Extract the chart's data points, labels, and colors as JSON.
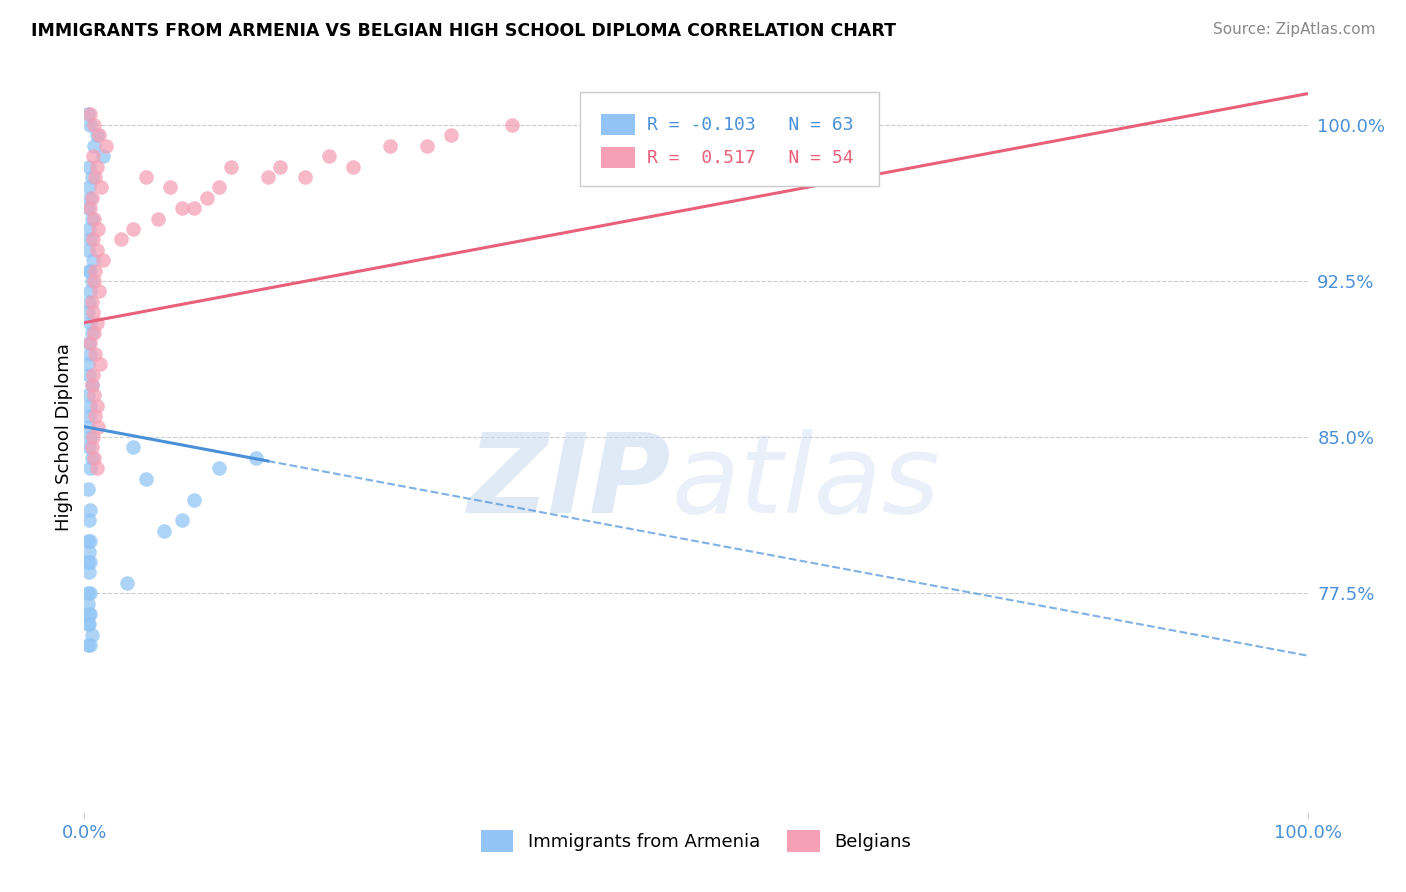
{
  "title": "IMMIGRANTS FROM ARMENIA VS BELGIAN HIGH SCHOOL DIPLOMA CORRELATION CHART",
  "source": "Source: ZipAtlas.com",
  "ylabel": "High School Diploma",
  "ytick_vals": [
    77.5,
    85.0,
    92.5,
    100.0
  ],
  "ytick_labels": [
    "77.5%",
    "85.0%",
    "92.5%",
    "100.0%"
  ],
  "legend_label_blue": "Immigrants from Armenia",
  "legend_label_pink": "Belgians",
  "blue_color": "#92c5f5",
  "pink_color": "#f5a0b5",
  "blue_line_color": "#4a90d9",
  "pink_line_color": "#e8607a",
  "blue_r": -0.103,
  "blue_n": 63,
  "pink_r": 0.517,
  "pink_n": 54,
  "blue_line_x0": 0,
  "blue_line_y0": 85.5,
  "blue_line_x1": 100,
  "blue_line_y1": 74.5,
  "blue_solid_end": 15,
  "pink_line_x0": 0,
  "pink_line_y0": 90.5,
  "pink_line_x1": 100,
  "pink_line_y1": 101.5,
  "xlim": [
    0,
    100
  ],
  "ylim": [
    67,
    103
  ],
  "blue_x": [
    0.3,
    0.5,
    1.0,
    0.8,
    1.5,
    0.4,
    0.6,
    0.4,
    0.5,
    0.3,
    0.6,
    0.4,
    0.5,
    0.3,
    0.7,
    0.5,
    0.4,
    0.6,
    0.5,
    0.4,
    0.3,
    0.5,
    0.6,
    0.4,
    0.5,
    0.3,
    0.4,
    0.6,
    0.3,
    0.5,
    0.4,
    0.3,
    0.5,
    0.4,
    0.6,
    0.5,
    0.3,
    0.5,
    0.4,
    0.3,
    0.5,
    0.4,
    0.3,
    0.5,
    0.4,
    0.3,
    0.5,
    0.3,
    0.4,
    0.5,
    0.3,
    0.4,
    0.6,
    0.5,
    0.3,
    4.0,
    5.0,
    9.0,
    6.5,
    3.5,
    11.0,
    8.0,
    14.0
  ],
  "blue_y": [
    100.5,
    100.0,
    99.5,
    99.0,
    98.5,
    98.0,
    97.5,
    97.0,
    96.5,
    96.0,
    95.5,
    95.0,
    94.5,
    94.0,
    93.5,
    93.0,
    93.0,
    92.5,
    92.0,
    91.5,
    91.0,
    90.5,
    90.0,
    89.5,
    89.0,
    88.5,
    88.0,
    87.5,
    87.0,
    86.5,
    86.0,
    85.5,
    85.0,
    84.5,
    84.0,
    83.5,
    82.5,
    81.5,
    81.0,
    80.0,
    80.0,
    79.5,
    79.0,
    79.0,
    78.5,
    77.5,
    77.5,
    77.0,
    76.5,
    76.5,
    76.0,
    76.0,
    75.5,
    75.0,
    75.0,
    84.5,
    83.0,
    82.0,
    80.5,
    78.0,
    83.5,
    81.0,
    84.0
  ],
  "pink_x": [
    0.5,
    0.8,
    1.2,
    1.8,
    0.7,
    1.0,
    0.9,
    1.4,
    0.6,
    0.5,
    0.8,
    1.1,
    0.7,
    1.0,
    1.5,
    0.9,
    0.8,
    1.2,
    0.6,
    0.7,
    1.0,
    0.8,
    0.5,
    0.9,
    1.3,
    0.7,
    0.6,
    0.8,
    1.0,
    0.9,
    1.1,
    0.7,
    0.6,
    0.8,
    1.0,
    5.0,
    7.0,
    10.0,
    12.0,
    4.0,
    8.0,
    15.0,
    20.0,
    6.0,
    3.0,
    9.0,
    11.0,
    16.0,
    25.0,
    30.0,
    18.0,
    22.0,
    35.0,
    28.0
  ],
  "pink_y": [
    100.5,
    100.0,
    99.5,
    99.0,
    98.5,
    98.0,
    97.5,
    97.0,
    96.5,
    96.0,
    95.5,
    95.0,
    94.5,
    94.0,
    93.5,
    93.0,
    92.5,
    92.0,
    91.5,
    91.0,
    90.5,
    90.0,
    89.5,
    89.0,
    88.5,
    88.0,
    87.5,
    87.0,
    86.5,
    86.0,
    85.5,
    85.0,
    84.5,
    84.0,
    83.5,
    97.5,
    97.0,
    96.5,
    98.0,
    95.0,
    96.0,
    97.5,
    98.5,
    95.5,
    94.5,
    96.0,
    97.0,
    98.0,
    99.0,
    99.5,
    97.5,
    98.0,
    100.0,
    99.0
  ]
}
